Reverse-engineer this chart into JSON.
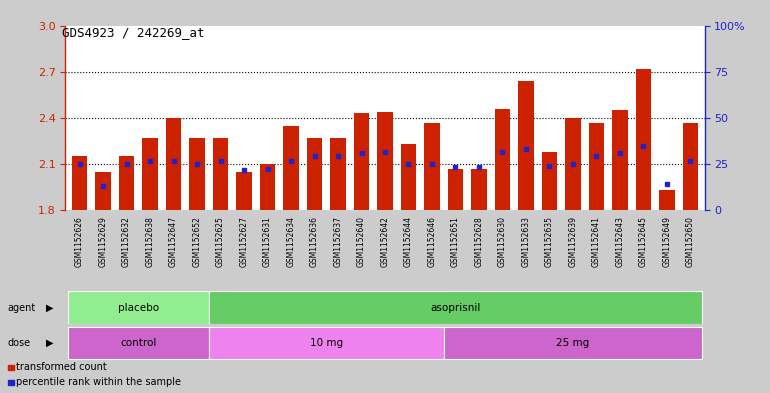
{
  "title": "GDS4923 / 242269_at",
  "samples": [
    "GSM1152626",
    "GSM1152629",
    "GSM1152632",
    "GSM1152638",
    "GSM1152647",
    "GSM1152652",
    "GSM1152625",
    "GSM1152627",
    "GSM1152631",
    "GSM1152634",
    "GSM1152636",
    "GSM1152637",
    "GSM1152640",
    "GSM1152642",
    "GSM1152644",
    "GSM1152646",
    "GSM1152651",
    "GSM1152628",
    "GSM1152630",
    "GSM1152633",
    "GSM1152635",
    "GSM1152639",
    "GSM1152641",
    "GSM1152643",
    "GSM1152645",
    "GSM1152649",
    "GSM1152650"
  ],
  "red_values": [
    2.15,
    2.05,
    2.15,
    2.27,
    2.4,
    2.27,
    2.27,
    2.05,
    2.1,
    2.35,
    2.27,
    2.27,
    2.43,
    2.44,
    2.23,
    2.37,
    2.07,
    2.07,
    2.46,
    2.64,
    2.18,
    2.4,
    2.37,
    2.45,
    2.72,
    1.93,
    2.37
  ],
  "blue_values": [
    2.1,
    1.96,
    2.1,
    2.12,
    2.12,
    2.1,
    2.12,
    2.06,
    2.07,
    2.12,
    2.15,
    2.15,
    2.17,
    2.18,
    2.1,
    2.1,
    2.08,
    2.08,
    2.18,
    2.2,
    2.09,
    2.1,
    2.15,
    2.17,
    2.22,
    1.97,
    2.12
  ],
  "ylim_left": [
    1.8,
    3.0
  ],
  "ylim_right": [
    0,
    100
  ],
  "yticks_left": [
    1.8,
    2.1,
    2.4,
    2.7,
    3.0
  ],
  "yticks_right": [
    0,
    25,
    50,
    75,
    100
  ],
  "agent_groups": [
    {
      "label": "placebo",
      "start": 0,
      "end": 6,
      "color": "#90EE90"
    },
    {
      "label": "asoprisnil",
      "start": 6,
      "end": 27,
      "color": "#66CC66"
    }
  ],
  "dose_groups": [
    {
      "label": "control",
      "start": 0,
      "end": 6,
      "color": "#CC66CC"
    },
    {
      "label": "10 mg",
      "start": 6,
      "end": 16,
      "color": "#EE82EE"
    },
    {
      "label": "25 mg",
      "start": 16,
      "end": 27,
      "color": "#CC66CC"
    }
  ],
  "bar_color": "#CC2200",
  "dot_color": "#2222CC",
  "background_color": "#CCCCCC",
  "plot_bg": "#FFFFFF",
  "xband_color": "#BBBBBB",
  "left_axis_color": "#CC2200",
  "right_axis_color": "#2222CC",
  "legend_items": [
    {
      "label": "transformed count",
      "color": "#CC2200"
    },
    {
      "label": "percentile rank within the sample",
      "color": "#2222CC"
    }
  ]
}
